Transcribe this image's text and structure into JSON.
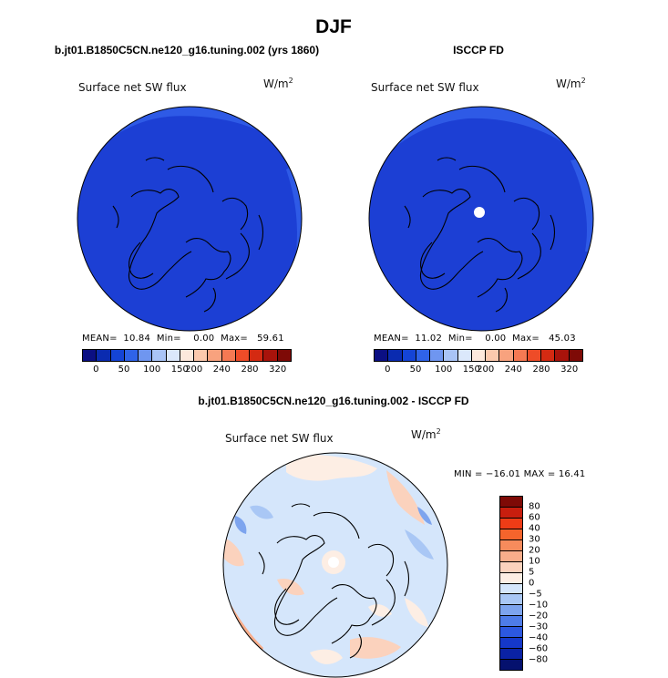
{
  "figure": {
    "title": "DJF"
  },
  "panels": [
    {
      "case_title": "b.jt01.B1850C5CN.ne120_g16.tuning.002 (yrs 1860)",
      "variable": "Surface net SW flux",
      "units_base": "W/m",
      "units_exp": "2",
      "stats": {
        "mean_label": "MEAN=",
        "mean": "10.84",
        "min_label": "Min=",
        "min": "0.00",
        "max_label": "Max=",
        "max": "59.61"
      }
    },
    {
      "case_title": "ISCCP FD",
      "variable": "Surface net SW flux",
      "units_base": "W/m",
      "units_exp": "2",
      "stats": {
        "mean_label": "MEAN=",
        "mean": "11.02",
        "min_label": "Min=",
        "min": "0.00",
        "max_label": "Max=",
        "max": "45.03"
      }
    }
  ],
  "difference": {
    "case_title": "b.jt01.B1850C5CN.ne120_g16.tuning.002 - ISCCP FD",
    "variable": "Surface net SW flux",
    "units_base": "W/m",
    "units_exp": "2",
    "minmax": "MIN = −16.01 MAX =  16.41"
  },
  "chart_data": [
    {
      "type": "heatmap",
      "projection": "north polar stereographic",
      "colorbar_ticks": [
        "0",
        "50",
        "100",
        "150",
        "200",
        "240",
        "280",
        "320"
      ],
      "colorbar_colors": [
        "#0b0f83",
        "#0a2bb0",
        "#1444d6",
        "#2f63e8",
        "#6f96f0",
        "#a9c4f6",
        "#dbe8fb",
        "#fde9dc",
        "#fbc9ad",
        "#f8a27e",
        "#f57953",
        "#ee4c28",
        "#d42a12",
        "#a8130b",
        "#7e0a06"
      ],
      "field_color": "#1c3fd4",
      "edge_color": "#2e5ae6",
      "mean": 10.84,
      "min": 0.0,
      "max": 59.61
    },
    {
      "type": "heatmap",
      "projection": "north polar stereographic",
      "colorbar_ticks": [
        "0",
        "50",
        "100",
        "150",
        "200",
        "240",
        "280",
        "320"
      ],
      "colorbar_colors": [
        "#0b0f83",
        "#0a2bb0",
        "#1444d6",
        "#2f63e8",
        "#6f96f0",
        "#a9c4f6",
        "#dbe8fb",
        "#fde9dc",
        "#fbc9ad",
        "#f8a27e",
        "#f57953",
        "#ee4c28",
        "#d42a12",
        "#a8130b",
        "#7e0a06"
      ],
      "field_color": "#1c3fd4",
      "edge_color": "#2e5ae6",
      "mean": 11.02,
      "min": 0.0,
      "max": 45.03
    },
    {
      "type": "heatmap",
      "projection": "north polar stereographic",
      "colorbar_ticks": [
        "80",
        "60",
        "40",
        "30",
        "20",
        "10",
        "5",
        "0",
        "−5",
        "−10",
        "−20",
        "−30",
        "−40",
        "−60",
        "−80"
      ],
      "colorbar_colors": [
        "#7e0a06",
        "#c81e0e",
        "#ee3c16",
        "#f5642c",
        "#f78b5c",
        "#f9ad8a",
        "#fbd2bd",
        "#fdeee4",
        "#d5e6fb",
        "#a9c7f5",
        "#7da4ee",
        "#4e7ce8",
        "#2c58e0",
        "#1538c9",
        "#0a22a4",
        "#05116e"
      ],
      "min": -16.01,
      "max": 16.41
    }
  ]
}
